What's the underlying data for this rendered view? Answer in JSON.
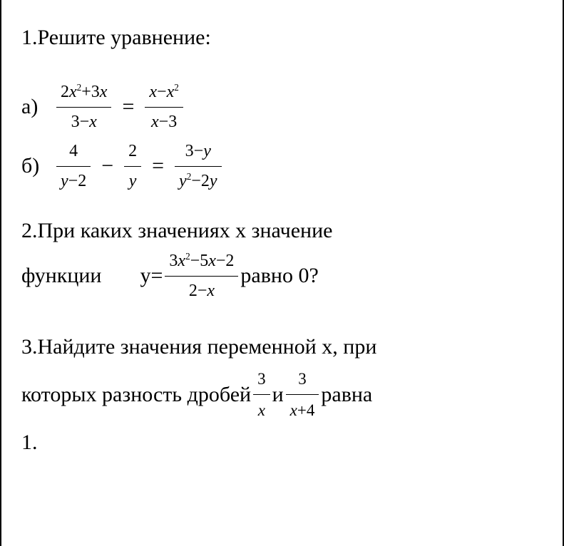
{
  "problem1": {
    "heading": "1.Решите уравнение:",
    "a": {
      "label": "а)",
      "lhs_num_parts": [
        "2",
        "x",
        "2",
        "+3",
        "x"
      ],
      "lhs_den_parts": [
        "3−",
        "x"
      ],
      "eq": "=",
      "rhs_num_parts": [
        "x",
        "−",
        "x",
        "2"
      ],
      "rhs_den_parts": [
        "x",
        "−3"
      ]
    },
    "b": {
      "label": "б)",
      "t1_num": "4",
      "t1_den_parts": [
        "y",
        "−2"
      ],
      "minus": "−",
      "t2_num": "2",
      "t2_den": "y",
      "eq": "=",
      "rhs_num_parts": [
        "3−",
        "y"
      ],
      "rhs_den_parts": [
        "y",
        "2",
        "−2",
        "y"
      ]
    }
  },
  "problem2": {
    "line1": "2.При каких значениях  х значение",
    "line2_pre": "функции",
    "line2_ylabel": "y=",
    "frac_num_parts": [
      "3",
      "x",
      "2",
      "−5",
      "x",
      "−2"
    ],
    "frac_den_parts": [
      "2−",
      "x"
    ],
    "line2_post": " равно 0?"
  },
  "problem3": {
    "line1": "3.Найдите значения переменной х, при",
    "line2_pre": "которых разность дробей ",
    "f1_num": "3",
    "f1_den": "x",
    "mid": " и ",
    "f2_num": "3",
    "f2_den_parts": [
      "x",
      "+4"
    ],
    "line2_post": "равна",
    "line3": "1."
  }
}
